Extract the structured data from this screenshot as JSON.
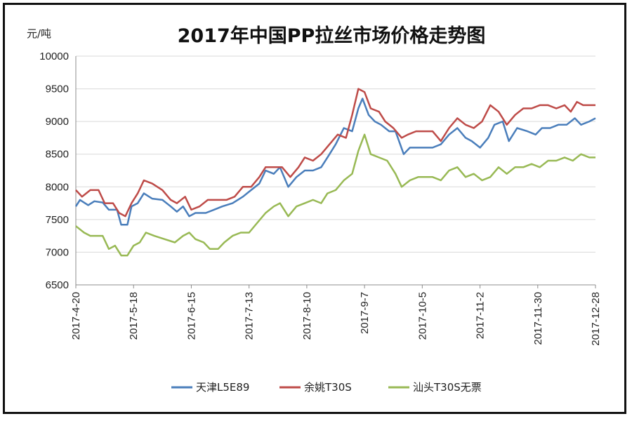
{
  "chart_data": {
    "type": "line",
    "title": "2017年中国PP拉丝市场价格走势图",
    "ylabel": "元/吨",
    "ylim": [
      6500,
      10000
    ],
    "yticks": [
      6500,
      7000,
      7500,
      8000,
      8500,
      9000,
      9500,
      10000
    ],
    "x_ticks": [
      "2017-4-20",
      "2017-5-18",
      "2017-6-15",
      "2017-7-13",
      "2017-8-10",
      "2017-9-7",
      "2017-10-5",
      "2017-11-2",
      "2017-11-30",
      "2017-12-28"
    ],
    "xlim": [
      "2017-4-20",
      "2017-12-28"
    ],
    "legend_position": "bottom",
    "series": [
      {
        "name": "天津L5E89",
        "color": "#4a7ebb",
        "points": [
          [
            "2017-04-20",
            7700
          ],
          [
            "2017-04-22",
            7800
          ],
          [
            "2017-04-26",
            7720
          ],
          [
            "2017-04-29",
            7780
          ],
          [
            "2017-05-03",
            7760
          ],
          [
            "2017-05-06",
            7650
          ],
          [
            "2017-05-10",
            7650
          ],
          [
            "2017-05-12",
            7420
          ],
          [
            "2017-05-15",
            7420
          ],
          [
            "2017-05-17",
            7700
          ],
          [
            "2017-05-20",
            7750
          ],
          [
            "2017-05-23",
            7900
          ],
          [
            "2017-05-27",
            7820
          ],
          [
            "2017-06-01",
            7800
          ],
          [
            "2017-06-05",
            7700
          ],
          [
            "2017-06-08",
            7620
          ],
          [
            "2017-06-11",
            7700
          ],
          [
            "2017-06-14",
            7550
          ],
          [
            "2017-06-17",
            7600
          ],
          [
            "2017-06-22",
            7600
          ],
          [
            "2017-06-26",
            7650
          ],
          [
            "2017-06-30",
            7700
          ],
          [
            "2017-07-05",
            7750
          ],
          [
            "2017-07-10",
            7850
          ],
          [
            "2017-07-14",
            7950
          ],
          [
            "2017-07-18",
            8050
          ],
          [
            "2017-07-21",
            8250
          ],
          [
            "2017-07-25",
            8200
          ],
          [
            "2017-07-28",
            8300
          ],
          [
            "2017-08-01",
            8000
          ],
          [
            "2017-08-05",
            8150
          ],
          [
            "2017-08-09",
            8250
          ],
          [
            "2017-08-13",
            8250
          ],
          [
            "2017-08-17",
            8300
          ],
          [
            "2017-08-20",
            8450
          ],
          [
            "2017-08-24",
            8650
          ],
          [
            "2017-08-28",
            8900
          ],
          [
            "2017-09-01",
            8850
          ],
          [
            "2017-09-04",
            9200
          ],
          [
            "2017-09-06",
            9350
          ],
          [
            "2017-09-09",
            9100
          ],
          [
            "2017-09-12",
            9000
          ],
          [
            "2017-09-15",
            8950
          ],
          [
            "2017-09-19",
            8850
          ],
          [
            "2017-09-22",
            8850
          ],
          [
            "2017-09-26",
            8500
          ],
          [
            "2017-09-29",
            8600
          ],
          [
            "2017-10-03",
            8600
          ],
          [
            "2017-10-10",
            8600
          ],
          [
            "2017-10-14",
            8650
          ],
          [
            "2017-10-18",
            8800
          ],
          [
            "2017-10-22",
            8900
          ],
          [
            "2017-10-26",
            8750
          ],
          [
            "2017-10-29",
            8700
          ],
          [
            "2017-11-02",
            8600
          ],
          [
            "2017-11-06",
            8750
          ],
          [
            "2017-11-09",
            8950
          ],
          [
            "2017-11-13",
            9000
          ],
          [
            "2017-11-16",
            8700
          ],
          [
            "2017-11-20",
            8900
          ],
          [
            "2017-11-25",
            8850
          ],
          [
            "2017-11-29",
            8800
          ],
          [
            "2017-12-02",
            8900
          ],
          [
            "2017-12-06",
            8900
          ],
          [
            "2017-12-10",
            8950
          ],
          [
            "2017-12-14",
            8950
          ],
          [
            "2017-12-18",
            9050
          ],
          [
            "2017-12-21",
            8950
          ],
          [
            "2017-12-25",
            9000
          ],
          [
            "2017-12-28",
            9050
          ]
        ]
      },
      {
        "name": "余姚T30S",
        "color": "#be4b48",
        "points": [
          [
            "2017-04-20",
            7950
          ],
          [
            "2017-04-23",
            7850
          ],
          [
            "2017-04-27",
            7950
          ],
          [
            "2017-05-01",
            7950
          ],
          [
            "2017-05-04",
            7750
          ],
          [
            "2017-05-08",
            7750
          ],
          [
            "2017-05-11",
            7600
          ],
          [
            "2017-05-14",
            7550
          ],
          [
            "2017-05-17",
            7750
          ],
          [
            "2017-05-20",
            7900
          ],
          [
            "2017-05-23",
            8100
          ],
          [
            "2017-05-27",
            8050
          ],
          [
            "2017-06-01",
            7950
          ],
          [
            "2017-06-05",
            7800
          ],
          [
            "2017-06-08",
            7750
          ],
          [
            "2017-06-12",
            7850
          ],
          [
            "2017-06-15",
            7650
          ],
          [
            "2017-06-19",
            7700
          ],
          [
            "2017-06-23",
            7800
          ],
          [
            "2017-06-28",
            7800
          ],
          [
            "2017-07-02",
            7800
          ],
          [
            "2017-07-06",
            7850
          ],
          [
            "2017-07-10",
            8000
          ],
          [
            "2017-07-14",
            8000
          ],
          [
            "2017-07-18",
            8150
          ],
          [
            "2017-07-21",
            8300
          ],
          [
            "2017-07-25",
            8300
          ],
          [
            "2017-07-29",
            8300
          ],
          [
            "2017-08-02",
            8150
          ],
          [
            "2017-08-06",
            8300
          ],
          [
            "2017-08-09",
            8450
          ],
          [
            "2017-08-13",
            8400
          ],
          [
            "2017-08-17",
            8500
          ],
          [
            "2017-08-21",
            8650
          ],
          [
            "2017-08-25",
            8800
          ],
          [
            "2017-08-29",
            8750
          ],
          [
            "2017-09-01",
            9100
          ],
          [
            "2017-09-04",
            9500
          ],
          [
            "2017-09-07",
            9450
          ],
          [
            "2017-09-10",
            9200
          ],
          [
            "2017-09-14",
            9150
          ],
          [
            "2017-09-17",
            9000
          ],
          [
            "2017-09-21",
            8900
          ],
          [
            "2017-09-25",
            8750
          ],
          [
            "2017-09-28",
            8800
          ],
          [
            "2017-10-02",
            8850
          ],
          [
            "2017-10-10",
            8850
          ],
          [
            "2017-10-14",
            8700
          ],
          [
            "2017-10-18",
            8900
          ],
          [
            "2017-10-22",
            9050
          ],
          [
            "2017-10-26",
            8950
          ],
          [
            "2017-10-30",
            8900
          ],
          [
            "2017-11-03",
            9000
          ],
          [
            "2017-11-07",
            9250
          ],
          [
            "2017-11-11",
            9150
          ],
          [
            "2017-11-15",
            8950
          ],
          [
            "2017-11-19",
            9100
          ],
          [
            "2017-11-23",
            9200
          ],
          [
            "2017-11-27",
            9200
          ],
          [
            "2017-12-01",
            9250
          ],
          [
            "2017-12-05",
            9250
          ],
          [
            "2017-12-09",
            9200
          ],
          [
            "2017-12-13",
            9250
          ],
          [
            "2017-12-16",
            9150
          ],
          [
            "2017-12-19",
            9300
          ],
          [
            "2017-12-22",
            9250
          ],
          [
            "2017-12-28",
            9250
          ]
        ]
      },
      {
        "name": "汕头T30S无票",
        "color": "#98b954",
        "points": [
          [
            "2017-04-20",
            7400
          ],
          [
            "2017-04-24",
            7300
          ],
          [
            "2017-04-27",
            7250
          ],
          [
            "2017-04-30",
            7250
          ],
          [
            "2017-05-03",
            7250
          ],
          [
            "2017-05-06",
            7050
          ],
          [
            "2017-05-09",
            7100
          ],
          [
            "2017-05-12",
            6950
          ],
          [
            "2017-05-15",
            6950
          ],
          [
            "2017-05-18",
            7100
          ],
          [
            "2017-05-21",
            7150
          ],
          [
            "2017-05-24",
            7300
          ],
          [
            "2017-05-28",
            7250
          ],
          [
            "2017-06-02",
            7200
          ],
          [
            "2017-06-07",
            7150
          ],
          [
            "2017-06-11",
            7250
          ],
          [
            "2017-06-14",
            7300
          ],
          [
            "2017-06-17",
            7200
          ],
          [
            "2017-06-21",
            7150
          ],
          [
            "2017-06-24",
            7050
          ],
          [
            "2017-06-28",
            7050
          ],
          [
            "2017-07-01",
            7150
          ],
          [
            "2017-07-05",
            7250
          ],
          [
            "2017-07-09",
            7300
          ],
          [
            "2017-07-13",
            7300
          ],
          [
            "2017-07-17",
            7450
          ],
          [
            "2017-07-21",
            7600
          ],
          [
            "2017-07-25",
            7700
          ],
          [
            "2017-07-28",
            7750
          ],
          [
            "2017-08-01",
            7550
          ],
          [
            "2017-08-05",
            7700
          ],
          [
            "2017-08-09",
            7750
          ],
          [
            "2017-08-13",
            7800
          ],
          [
            "2017-08-17",
            7750
          ],
          [
            "2017-08-20",
            7900
          ],
          [
            "2017-08-24",
            7950
          ],
          [
            "2017-08-28",
            8100
          ],
          [
            "2017-09-01",
            8200
          ],
          [
            "2017-09-04",
            8550
          ],
          [
            "2017-09-07",
            8800
          ],
          [
            "2017-09-10",
            8500
          ],
          [
            "2017-09-14",
            8450
          ],
          [
            "2017-09-18",
            8400
          ],
          [
            "2017-09-22",
            8200
          ],
          [
            "2017-09-25",
            8000
          ],
          [
            "2017-09-29",
            8100
          ],
          [
            "2017-10-03",
            8150
          ],
          [
            "2017-10-10",
            8150
          ],
          [
            "2017-10-14",
            8100
          ],
          [
            "2017-10-18",
            8250
          ],
          [
            "2017-10-22",
            8300
          ],
          [
            "2017-10-26",
            8150
          ],
          [
            "2017-10-30",
            8200
          ],
          [
            "2017-11-03",
            8100
          ],
          [
            "2017-11-07",
            8150
          ],
          [
            "2017-11-11",
            8300
          ],
          [
            "2017-11-15",
            8200
          ],
          [
            "2017-11-19",
            8300
          ],
          [
            "2017-11-23",
            8300
          ],
          [
            "2017-11-27",
            8350
          ],
          [
            "2017-12-01",
            8300
          ],
          [
            "2017-12-05",
            8400
          ],
          [
            "2017-12-09",
            8400
          ],
          [
            "2017-12-13",
            8450
          ],
          [
            "2017-12-17",
            8400
          ],
          [
            "2017-12-21",
            8500
          ],
          [
            "2017-12-25",
            8450
          ],
          [
            "2017-12-28",
            8450
          ]
        ]
      }
    ]
  }
}
